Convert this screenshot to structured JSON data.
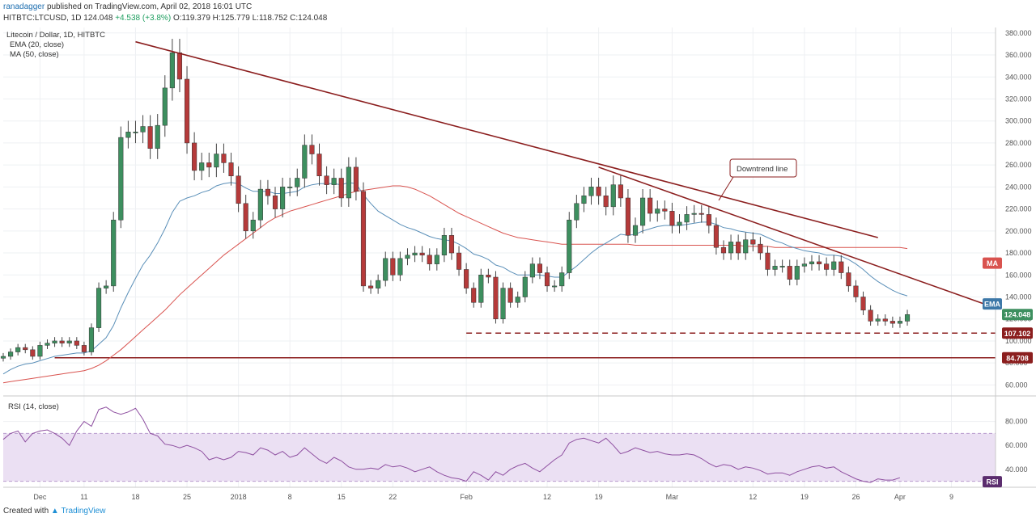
{
  "header": {
    "author": "ranadagger",
    "published_text": "published on TradingView.com, April 02, 2018 16:01 UTC",
    "symbol": "HITBTC:LTCUSD, 1D",
    "last": "124.048",
    "change": "+4.538 (+3.8%)",
    "ohlc": "O:119.379 H:125.779 L:118.752 C:124.048"
  },
  "footer": {
    "created_with": "Created with",
    "brand": "TradingView"
  },
  "colors": {
    "up": "#3d8f5f",
    "down": "#b53a3a",
    "ema": "#5a8fb8",
    "ma": "#d9534f",
    "trend": "#8b1e1e",
    "rsi": "#8e4fa0",
    "rsi_band": "#ebe0f3"
  },
  "chart_data": [
    {
      "type": "candlestick",
      "title": "Litecoin / Dollar, 1D, HITBTC",
      "legend": [
        "EMA (20, close)",
        "MA (50, close)"
      ],
      "legend_placement": "top-left",
      "ylim": [
        50,
        385
      ],
      "y_ticks": [
        "380.000",
        "360.000",
        "340.000",
        "320.000",
        "300.000",
        "280.000",
        "260.000",
        "240.000",
        "220.000",
        "200.000",
        "180.000",
        "160.000",
        "140.000",
        "120.000",
        "100.000",
        "80.000",
        "60.000"
      ],
      "x_ticks": [
        {
          "label": "Dec",
          "day": 5
        },
        {
          "label": "11",
          "day": 11
        },
        {
          "label": "18",
          "day": 18
        },
        {
          "label": "25",
          "day": 25
        },
        {
          "label": "2018",
          "day": 32
        },
        {
          "label": "8",
          "day": 39
        },
        {
          "label": "15",
          "day": 46
        },
        {
          "label": "22",
          "day": 53
        },
        {
          "label": "Feb",
          "day": 63
        },
        {
          "label": "12",
          "day": 74
        },
        {
          "label": "19",
          "day": 81
        },
        {
          "label": "Mar",
          "day": 91
        },
        {
          "label": "12",
          "day": 102
        },
        {
          "label": "19",
          "day": 109
        },
        {
          "label": "26",
          "day": 116
        },
        {
          "label": "Apr",
          "day": 122
        },
        {
          "label": "9",
          "day": 129
        }
      ],
      "x_range_days": [
        0,
        135
      ],
      "ohlc_close": [
        86,
        90,
        94,
        92,
        86,
        96,
        98,
        100,
        98,
        100,
        96,
        90,
        112,
        148,
        150,
        210,
        285,
        290,
        290,
        295,
        275,
        296,
        330,
        362,
        338,
        280,
        255,
        262,
        258,
        270,
        262,
        250,
        225,
        200,
        210,
        238,
        232,
        220,
        240,
        240,
        248,
        278,
        270,
        250,
        242,
        248,
        230,
        258,
        236,
        150,
        148,
        155,
        175,
        160,
        175,
        178,
        180,
        178,
        170,
        178,
        196,
        180,
        165,
        148,
        135,
        160,
        158,
        120,
        148,
        135,
        140,
        158,
        170,
        162,
        150,
        150,
        162,
        210,
        225,
        232,
        240,
        232,
        222,
        242,
        230,
        196,
        205,
        230,
        216,
        220,
        218,
        205,
        208,
        215,
        216,
        215,
        205,
        185,
        180,
        190,
        180,
        192,
        188,
        180,
        165,
        168,
        168,
        156,
        168,
        170,
        172,
        170,
        165,
        172,
        162,
        150,
        140,
        128,
        118,
        120,
        118,
        116,
        118,
        124
      ],
      "series": [
        {
          "name": "EMA (20, close)",
          "values": [
            70,
            74,
            77,
            79,
            80,
            82,
            84,
            86,
            87,
            88,
            89,
            89,
            91,
            97,
            103,
            114,
            130,
            144,
            157,
            169,
            178,
            189,
            202,
            217,
            227,
            230,
            232,
            235,
            237,
            241,
            243,
            244,
            243,
            239,
            236,
            236,
            236,
            234,
            234,
            235,
            236,
            240,
            242,
            243,
            243,
            243,
            242,
            244,
            243,
            233,
            225,
            218,
            214,
            210,
            206,
            203,
            201,
            198,
            195,
            193,
            192,
            191,
            188,
            184,
            179,
            177,
            174,
            169,
            167,
            163,
            160,
            160,
            160,
            160,
            159,
            158,
            158,
            163,
            168,
            174,
            180,
            185,
            189,
            193,
            197,
            196,
            197,
            200,
            202,
            204,
            205,
            205,
            205,
            206,
            207,
            208,
            208,
            206,
            203,
            202,
            200,
            199,
            198,
            197,
            194,
            191,
            189,
            186,
            184,
            182,
            181,
            180,
            178,
            178,
            177,
            174,
            170,
            165,
            159,
            154,
            150,
            146,
            143,
            141
          ]
        },
        {
          "name": "MA (50, close)",
          "values": [
            62,
            63,
            64,
            65,
            66,
            67,
            68,
            69,
            70,
            71,
            72,
            73,
            75,
            78,
            82,
            87,
            92,
            98,
            104,
            110,
            116,
            122,
            128,
            135,
            142,
            148,
            154,
            160,
            166,
            172,
            178,
            183,
            188,
            193,
            198,
            203,
            208,
            212,
            215,
            218,
            220,
            222,
            224,
            226,
            228,
            230,
            232,
            234,
            236,
            237,
            238,
            239,
            240,
            241,
            241,
            240,
            238,
            235,
            232,
            228,
            224,
            220,
            216,
            213,
            210,
            207,
            204,
            201,
            198,
            196,
            194,
            193,
            192,
            191,
            190,
            189,
            188,
            188,
            188,
            188,
            188,
            188,
            188,
            188,
            188,
            188,
            187,
            187,
            187,
            187,
            187,
            187,
            187,
            187,
            187,
            187,
            187,
            187,
            187,
            187,
            187,
            186,
            186,
            186,
            186,
            185,
            185,
            185,
            185,
            185,
            185,
            185,
            185,
            185,
            185,
            185,
            185,
            185,
            185,
            185,
            185,
            185,
            185,
            184
          ]
        }
      ],
      "price_labels": [
        {
          "text": "124.048",
          "role": "last",
          "value": 124.048
        },
        {
          "text": "107.102",
          "role": "support",
          "value": 107.102
        },
        {
          "text": "84.708",
          "role": "support",
          "value": 84.708
        }
      ],
      "indicator_tags": [
        "MA",
        "EMA"
      ],
      "annotation": "Downtrend line",
      "trend_lines": [
        {
          "from": {
            "day": 18,
            "value": 372
          },
          "to": {
            "day": 119,
            "value": 194
          }
        },
        {
          "from": {
            "day": 81,
            "value": 258
          },
          "to": {
            "day": 135,
            "value": 130
          }
        }
      ],
      "horizontal_levels": [
        {
          "value": 107.102,
          "style": "dashed",
          "from_day": 63
        },
        {
          "value": 84.708,
          "style": "solid",
          "from_day": 7
        }
      ]
    },
    {
      "type": "line",
      "title": "RSI (14, close)",
      "ylim": [
        25,
        100
      ],
      "y_ticks": [
        "80.000",
        "60.000",
        "40.000"
      ],
      "band": [
        30,
        70
      ],
      "tag": "RSI",
      "values": [
        65,
        70,
        72,
        63,
        70,
        72,
        73,
        70,
        66,
        60,
        72,
        80,
        76,
        90,
        92,
        88,
        86,
        88,
        91,
        82,
        70,
        68,
        61,
        60,
        58,
        60,
        58,
        55,
        48,
        50,
        48,
        50,
        55,
        54,
        52,
        58,
        56,
        52,
        55,
        50,
        52,
        58,
        53,
        48,
        45,
        50,
        47,
        42,
        40,
        40,
        41,
        40,
        44,
        42,
        43,
        41,
        38,
        40,
        42,
        38,
        35,
        33,
        32,
        30,
        38,
        35,
        31,
        38,
        35,
        40,
        43,
        45,
        41,
        38,
        43,
        48,
        52,
        62,
        65,
        66,
        64,
        62,
        66,
        60,
        53,
        55,
        58,
        56,
        54,
        55,
        53,
        52,
        52,
        53,
        52,
        49,
        45,
        42,
        44,
        43,
        40,
        42,
        41,
        39,
        36,
        37,
        37,
        35,
        38,
        40,
        42,
        43,
        41,
        42,
        38,
        35,
        32,
        30,
        29,
        32,
        31,
        31,
        33
      ]
    }
  ]
}
